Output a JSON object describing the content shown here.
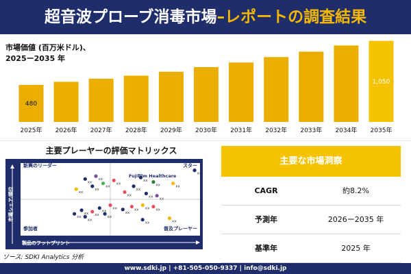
{
  "header": {
    "title_main": "超音波プローブ消毒市場",
    "title_accent": "–レポートの調査結果"
  },
  "market_value": {
    "label_line1": "市場価値 (百万米ドル)、",
    "label_line2": "2025ー2035 年"
  },
  "chart_data": {
    "type": "bar",
    "categories": [
      "2025年",
      "2026年",
      "2027年",
      "2028年",
      "2029年",
      "2030年",
      "2031年",
      "2032年",
      "2033年",
      "2034年",
      "2035年"
    ],
    "values": [
      480,
      520,
      560,
      600,
      650,
      710,
      770,
      840,
      910,
      990,
      1050
    ],
    "data_labels": {
      "0": "480",
      "10": "1,050"
    },
    "ylim": [
      0,
      1100
    ],
    "title": "",
    "xlabel": "",
    "ylabel": "",
    "colors": {
      "bar": "#e9ae00",
      "highlight": "#f5c200"
    }
  },
  "matrix": {
    "title": "主要プレーヤーの評価マトリックス",
    "quadrants": {
      "top_left": "新興のリーダー",
      "top_right": "スター",
      "bottom_left": "参加者",
      "bottom_right": "普及プレーヤー"
    },
    "x_axis": "製品のフットプリント",
    "y_axis": "市場シェア/順位",
    "highlight_company": "Fujifilm Healthcare",
    "points": [
      {
        "label": "xx",
        "x": 0.42,
        "y": 0.82,
        "color": "#7a4fa0"
      },
      {
        "label": "xx",
        "x": 0.36,
        "y": 0.78,
        "color": "#1f2d6b"
      },
      {
        "label": "xx",
        "x": 0.52,
        "y": 0.76,
        "color": "#e94f64"
      },
      {
        "label": "xx",
        "x": 0.46,
        "y": 0.72,
        "color": "#4caf50"
      },
      {
        "label": "xx",
        "x": 0.4,
        "y": 0.68,
        "color": "#1f2d6b"
      },
      {
        "label": "xx",
        "x": 0.31,
        "y": 0.64,
        "color": "#f5b800"
      },
      {
        "label": "xx",
        "x": 0.67,
        "y": 0.8,
        "color": "#1f2d6b"
      },
      {
        "label": "xx",
        "x": 0.74,
        "y": 0.74,
        "color": "#2e7d32"
      },
      {
        "label": "xx",
        "x": 0.63,
        "y": 0.68,
        "color": "#1f2d6b"
      },
      {
        "label": "xx",
        "x": 0.85,
        "y": 0.72,
        "color": "#f5b800"
      },
      {
        "label": "xx",
        "x": 0.97,
        "y": 0.9,
        "color": "#1f2d6b"
      },
      {
        "label": "xx",
        "x": 0.58,
        "y": 0.6,
        "color": "#e94f64"
      },
      {
        "label": "xx",
        "x": 0.7,
        "y": 0.58,
        "color": "#1f2d6b"
      },
      {
        "label": "xx",
        "x": 0.76,
        "y": 0.55,
        "color": "#7a4fa0"
      },
      {
        "label": "xx",
        "x": 0.5,
        "y": 0.42,
        "color": "#e94f64"
      },
      {
        "label": "xx",
        "x": 0.44,
        "y": 0.38,
        "color": "#1f2d6b"
      },
      {
        "label": "xx",
        "x": 0.34,
        "y": 0.35,
        "color": "#1f2d6b"
      },
      {
        "label": "xx",
        "x": 0.4,
        "y": 0.33,
        "color": "#e94f64"
      },
      {
        "label": "xx",
        "x": 0.62,
        "y": 0.4,
        "color": "#e94f64"
      },
      {
        "label": "xx",
        "x": 0.57,
        "y": 0.36,
        "color": "#1f2d6b"
      },
      {
        "label": "xx",
        "x": 0.68,
        "y": 0.42,
        "color": "#f5b800"
      },
      {
        "label": "xx",
        "x": 0.74,
        "y": 0.4,
        "color": "#e94f64"
      },
      {
        "label": "xx",
        "x": 0.36,
        "y": 0.26,
        "color": "#1f2d6b"
      },
      {
        "label": "xx",
        "x": 0.3,
        "y": 0.3,
        "color": "#1f2d6b"
      },
      {
        "label": "xx",
        "x": 0.47,
        "y": 0.3,
        "color": "#1f2d6b"
      },
      {
        "label": "xx",
        "x": 0.68,
        "y": 0.22,
        "color": "#1f2d6b"
      },
      {
        "label": "xx",
        "x": 0.83,
        "y": 0.24,
        "color": "#f5b800"
      }
    ]
  },
  "source": "ソース: SDKI Analytics 分析",
  "insights": {
    "title": "主要な市場洞察",
    "rows": [
      {
        "label": "CAGR",
        "value": "約8.2%"
      },
      {
        "label": "予測年",
        "value": "2026ー2035 年"
      },
      {
        "label": "基準年",
        "value": "2025 年"
      }
    ]
  },
  "footer": "www.sdki.jp | +81-505-050-9337 | info@sdki.jp"
}
